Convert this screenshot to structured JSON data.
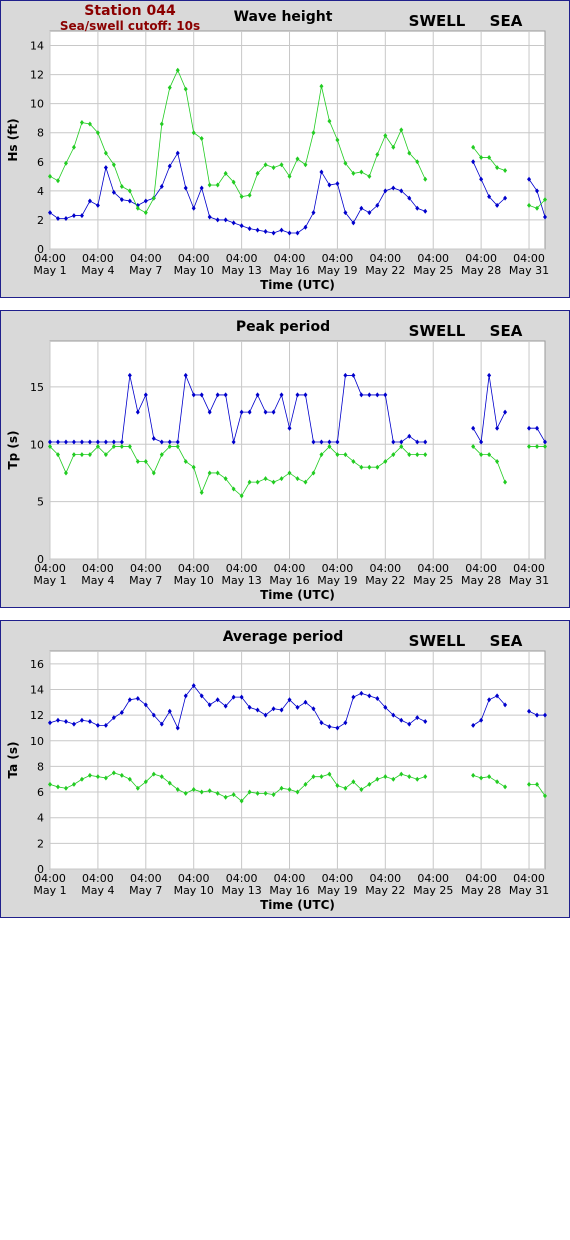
{
  "chart_data": [
    {
      "type": "line",
      "title": "Wave height",
      "ylabel": "Hs (ft)",
      "xlabel": "Time (UTC)",
      "annotations": [
        "Station 044",
        "Sea/swell cutoff: 10s"
      ],
      "grid": true,
      "legend": "top-right",
      "xlim": [
        1.17,
        32.17
      ],
      "ylim": [
        0,
        15
      ],
      "xticks": [
        {
          "value": 1.17,
          "label": "04:00\nMay 1"
        },
        {
          "value": 4.17,
          "label": "04:00\nMay 4"
        },
        {
          "value": 7.17,
          "label": "04:00\nMay 7"
        },
        {
          "value": 10.17,
          "label": "04:00\nMay 10"
        },
        {
          "value": 13.17,
          "label": "04:00\nMay 13"
        },
        {
          "value": 16.17,
          "label": "04:00\nMay 16"
        },
        {
          "value": 19.17,
          "label": "04:00\nMay 19"
        },
        {
          "value": 22.17,
          "label": "04:00\nMay 22"
        },
        {
          "value": 25.17,
          "label": "04:00\nMay 25"
        },
        {
          "value": 28.17,
          "label": "04:00\nMay 28"
        },
        {
          "value": 31.17,
          "label": "04:00\nMay 31"
        }
      ],
      "yticks": [
        0,
        2,
        4,
        6,
        8,
        10,
        12,
        14
      ],
      "x": [
        1.17,
        1.67,
        2.17,
        2.67,
        3.17,
        3.67,
        4.17,
        4.67,
        5.17,
        5.67,
        6.17,
        6.67,
        7.17,
        7.67,
        8.17,
        8.67,
        9.17,
        9.67,
        10.17,
        10.67,
        11.17,
        11.67,
        12.17,
        12.67,
        13.17,
        13.67,
        14.17,
        14.67,
        15.17,
        15.67,
        16.17,
        16.67,
        17.17,
        17.67,
        18.17,
        18.67,
        19.17,
        19.67,
        20.17,
        20.67,
        21.17,
        21.67,
        22.17,
        22.67,
        23.17,
        23.67,
        24.17,
        24.67,
        25.17,
        25.67,
        26.17,
        26.67,
        27.17,
        27.67,
        28.17,
        28.67,
        29.17,
        29.67,
        30.17,
        30.67,
        31.17,
        31.67,
        32.17
      ],
      "series": [
        {
          "name": "SWELL",
          "color": "#0000cc",
          "values": [
            2.5,
            2.1,
            2.1,
            2.3,
            2.3,
            3.3,
            3.0,
            5.6,
            3.9,
            3.4,
            3.3,
            3.0,
            3.3,
            3.5,
            4.3,
            5.7,
            6.6,
            4.2,
            2.8,
            4.2,
            2.2,
            2.0,
            2.0,
            1.8,
            1.6,
            1.4,
            1.3,
            1.2,
            1.1,
            1.3,
            1.1,
            1.1,
            1.5,
            2.5,
            5.3,
            4.4,
            4.5,
            2.5,
            1.8,
            2.8,
            2.5,
            3.0,
            4.0,
            4.2,
            4.0,
            3.5,
            2.8,
            2.6,
            null,
            null,
            null,
            null,
            null,
            6.0,
            4.8,
            3.6,
            3.0,
            3.5,
            null,
            null,
            4.8,
            4.0,
            2.2
          ]
        },
        {
          "name": "SEA",
          "color": "#22cc22",
          "values": [
            5.0,
            4.7,
            5.9,
            7.0,
            8.7,
            8.6,
            8.0,
            6.6,
            5.8,
            4.3,
            4.0,
            2.8,
            2.5,
            3.5,
            8.6,
            11.1,
            12.3,
            11.0,
            8.0,
            7.6,
            4.4,
            4.4,
            5.2,
            4.6,
            3.6,
            3.7,
            5.2,
            5.8,
            5.6,
            5.8,
            5.0,
            6.2,
            5.8,
            8.0,
            11.2,
            8.8,
            7.5,
            5.9,
            5.2,
            5.3,
            5.0,
            6.5,
            7.8,
            7.0,
            8.2,
            6.6,
            6.0,
            4.8,
            null,
            null,
            null,
            null,
            null,
            7.0,
            6.3,
            6.3,
            5.6,
            5.4,
            null,
            null,
            3.0,
            2.8,
            3.4
          ]
        }
      ]
    },
    {
      "type": "line",
      "title": "Peak period",
      "ylabel": "Tp (s)",
      "xlabel": "Time (UTC)",
      "grid": true,
      "legend": "top-right",
      "xlim": [
        1.17,
        32.17
      ],
      "ylim": [
        0,
        19
      ],
      "xticks": [
        {
          "value": 1.17,
          "label": "04:00\nMay 1"
        },
        {
          "value": 4.17,
          "label": "04:00\nMay 4"
        },
        {
          "value": 7.17,
          "label": "04:00\nMay 7"
        },
        {
          "value": 10.17,
          "label": "04:00\nMay 10"
        },
        {
          "value": 13.17,
          "label": "04:00\nMay 13"
        },
        {
          "value": 16.17,
          "label": "04:00\nMay 16"
        },
        {
          "value": 19.17,
          "label": "04:00\nMay 19"
        },
        {
          "value": 22.17,
          "label": "04:00\nMay 22"
        },
        {
          "value": 25.17,
          "label": "04:00\nMay 25"
        },
        {
          "value": 28.17,
          "label": "04:00\nMay 28"
        },
        {
          "value": 31.17,
          "label": "04:00\nMay 31"
        }
      ],
      "yticks": [
        0,
        5,
        10,
        15
      ],
      "x": [
        1.17,
        1.67,
        2.17,
        2.67,
        3.17,
        3.67,
        4.17,
        4.67,
        5.17,
        5.67,
        6.17,
        6.67,
        7.17,
        7.67,
        8.17,
        8.67,
        9.17,
        9.67,
        10.17,
        10.67,
        11.17,
        11.67,
        12.17,
        12.67,
        13.17,
        13.67,
        14.17,
        14.67,
        15.17,
        15.67,
        16.17,
        16.67,
        17.17,
        17.67,
        18.17,
        18.67,
        19.17,
        19.67,
        20.17,
        20.67,
        21.17,
        21.67,
        22.17,
        22.67,
        23.17,
        23.67,
        24.17,
        24.67,
        25.17,
        25.67,
        26.17,
        26.67,
        27.17,
        27.67,
        28.17,
        28.67,
        29.17,
        29.67,
        30.17,
        30.67,
        31.17,
        31.67,
        32.17
      ],
      "series": [
        {
          "name": "SWELL",
          "color": "#0000cc",
          "values": [
            10.2,
            10.2,
            10.2,
            10.2,
            10.2,
            10.2,
            10.2,
            10.2,
            10.2,
            10.2,
            16.0,
            12.8,
            14.3,
            10.5,
            10.2,
            10.2,
            10.2,
            16.0,
            14.3,
            14.3,
            12.8,
            14.3,
            14.3,
            10.2,
            12.8,
            12.8,
            14.3,
            12.8,
            12.8,
            14.3,
            11.4,
            14.3,
            14.3,
            10.2,
            10.2,
            10.2,
            10.2,
            16.0,
            16.0,
            14.3,
            14.3,
            14.3,
            14.3,
            10.2,
            10.2,
            10.7,
            10.2,
            10.2,
            null,
            null,
            null,
            null,
            null,
            11.4,
            10.2,
            16.0,
            11.4,
            12.8,
            null,
            null,
            11.4,
            11.4,
            10.2
          ]
        },
        {
          "name": "SEA",
          "color": "#22cc22",
          "values": [
            9.8,
            9.1,
            7.5,
            9.1,
            9.1,
            9.1,
            9.8,
            9.1,
            9.8,
            9.8,
            9.8,
            8.5,
            8.5,
            7.5,
            9.1,
            9.8,
            9.8,
            8.5,
            8.0,
            5.8,
            7.5,
            7.5,
            7.0,
            6.1,
            5.5,
            6.7,
            6.7,
            7.0,
            6.7,
            7.0,
            7.5,
            7.0,
            6.7,
            7.5,
            9.1,
            9.8,
            9.1,
            9.1,
            8.5,
            8.0,
            8.0,
            8.0,
            8.5,
            9.1,
            9.8,
            9.1,
            9.1,
            9.1,
            null,
            null,
            null,
            null,
            null,
            9.8,
            9.1,
            9.1,
            8.5,
            6.7,
            null,
            null,
            9.8,
            9.8,
            9.8
          ]
        }
      ]
    },
    {
      "type": "line",
      "title": "Average period",
      "ylabel": "Ta (s)",
      "xlabel": "Time (UTC)",
      "grid": true,
      "legend": "top-right",
      "xlim": [
        1.17,
        32.17
      ],
      "ylim": [
        0,
        17
      ],
      "xticks": [
        {
          "value": 1.17,
          "label": "04:00\nMay 1"
        },
        {
          "value": 4.17,
          "label": "04:00\nMay 4"
        },
        {
          "value": 7.17,
          "label": "04:00\nMay 7"
        },
        {
          "value": 10.17,
          "label": "04:00\nMay 10"
        },
        {
          "value": 13.17,
          "label": "04:00\nMay 13"
        },
        {
          "value": 16.17,
          "label": "04:00\nMay 16"
        },
        {
          "value": 19.17,
          "label": "04:00\nMay 19"
        },
        {
          "value": 22.17,
          "label": "04:00\nMay 22"
        },
        {
          "value": 25.17,
          "label": "04:00\nMay 25"
        },
        {
          "value": 28.17,
          "label": "04:00\nMay 28"
        },
        {
          "value": 31.17,
          "label": "04:00\nMay 31"
        }
      ],
      "yticks": [
        0,
        2,
        4,
        6,
        8,
        10,
        12,
        14,
        16
      ],
      "x": [
        1.17,
        1.67,
        2.17,
        2.67,
        3.17,
        3.67,
        4.17,
        4.67,
        5.17,
        5.67,
        6.17,
        6.67,
        7.17,
        7.67,
        8.17,
        8.67,
        9.17,
        9.67,
        10.17,
        10.67,
        11.17,
        11.67,
        12.17,
        12.67,
        13.17,
        13.67,
        14.17,
        14.67,
        15.17,
        15.67,
        16.17,
        16.67,
        17.17,
        17.67,
        18.17,
        18.67,
        19.17,
        19.67,
        20.17,
        20.67,
        21.17,
        21.67,
        22.17,
        22.67,
        23.17,
        23.67,
        24.17,
        24.67,
        25.17,
        25.67,
        26.17,
        26.67,
        27.17,
        27.67,
        28.17,
        28.67,
        29.17,
        29.67,
        30.17,
        30.67,
        31.17,
        31.67,
        32.17
      ],
      "series": [
        {
          "name": "SWELL",
          "color": "#0000cc",
          "values": [
            11.4,
            11.6,
            11.5,
            11.3,
            11.6,
            11.5,
            11.2,
            11.2,
            11.8,
            12.2,
            13.2,
            13.3,
            12.8,
            12.0,
            11.3,
            12.3,
            11.0,
            13.5,
            14.3,
            13.5,
            12.8,
            13.2,
            12.7,
            13.4,
            13.4,
            12.6,
            12.4,
            12.0,
            12.5,
            12.4,
            13.2,
            12.6,
            13.0,
            12.5,
            11.4,
            11.1,
            11.0,
            11.4,
            13.4,
            13.7,
            13.5,
            13.3,
            12.6,
            12.0,
            11.6,
            11.3,
            11.8,
            11.5,
            null,
            null,
            null,
            null,
            null,
            11.2,
            11.6,
            13.2,
            13.5,
            12.8,
            null,
            null,
            12.3,
            12.0,
            12.0
          ]
        },
        {
          "name": "SEA",
          "color": "#22cc22",
          "values": [
            6.6,
            6.4,
            6.3,
            6.6,
            7.0,
            7.3,
            7.2,
            7.1,
            7.5,
            7.3,
            7.0,
            6.3,
            6.8,
            7.4,
            7.2,
            6.7,
            6.2,
            5.9,
            6.2,
            6.0,
            6.1,
            5.9,
            5.6,
            5.8,
            5.3,
            6.0,
            5.9,
            5.9,
            5.8,
            6.3,
            6.2,
            6.0,
            6.6,
            7.2,
            7.2,
            7.4,
            6.5,
            6.3,
            6.8,
            6.2,
            6.6,
            7.0,
            7.2,
            7.0,
            7.4,
            7.2,
            7.0,
            7.2,
            null,
            null,
            null,
            null,
            null,
            7.3,
            7.1,
            7.2,
            6.8,
            6.4,
            null,
            null,
            6.6,
            6.6,
            5.7
          ]
        }
      ]
    }
  ]
}
